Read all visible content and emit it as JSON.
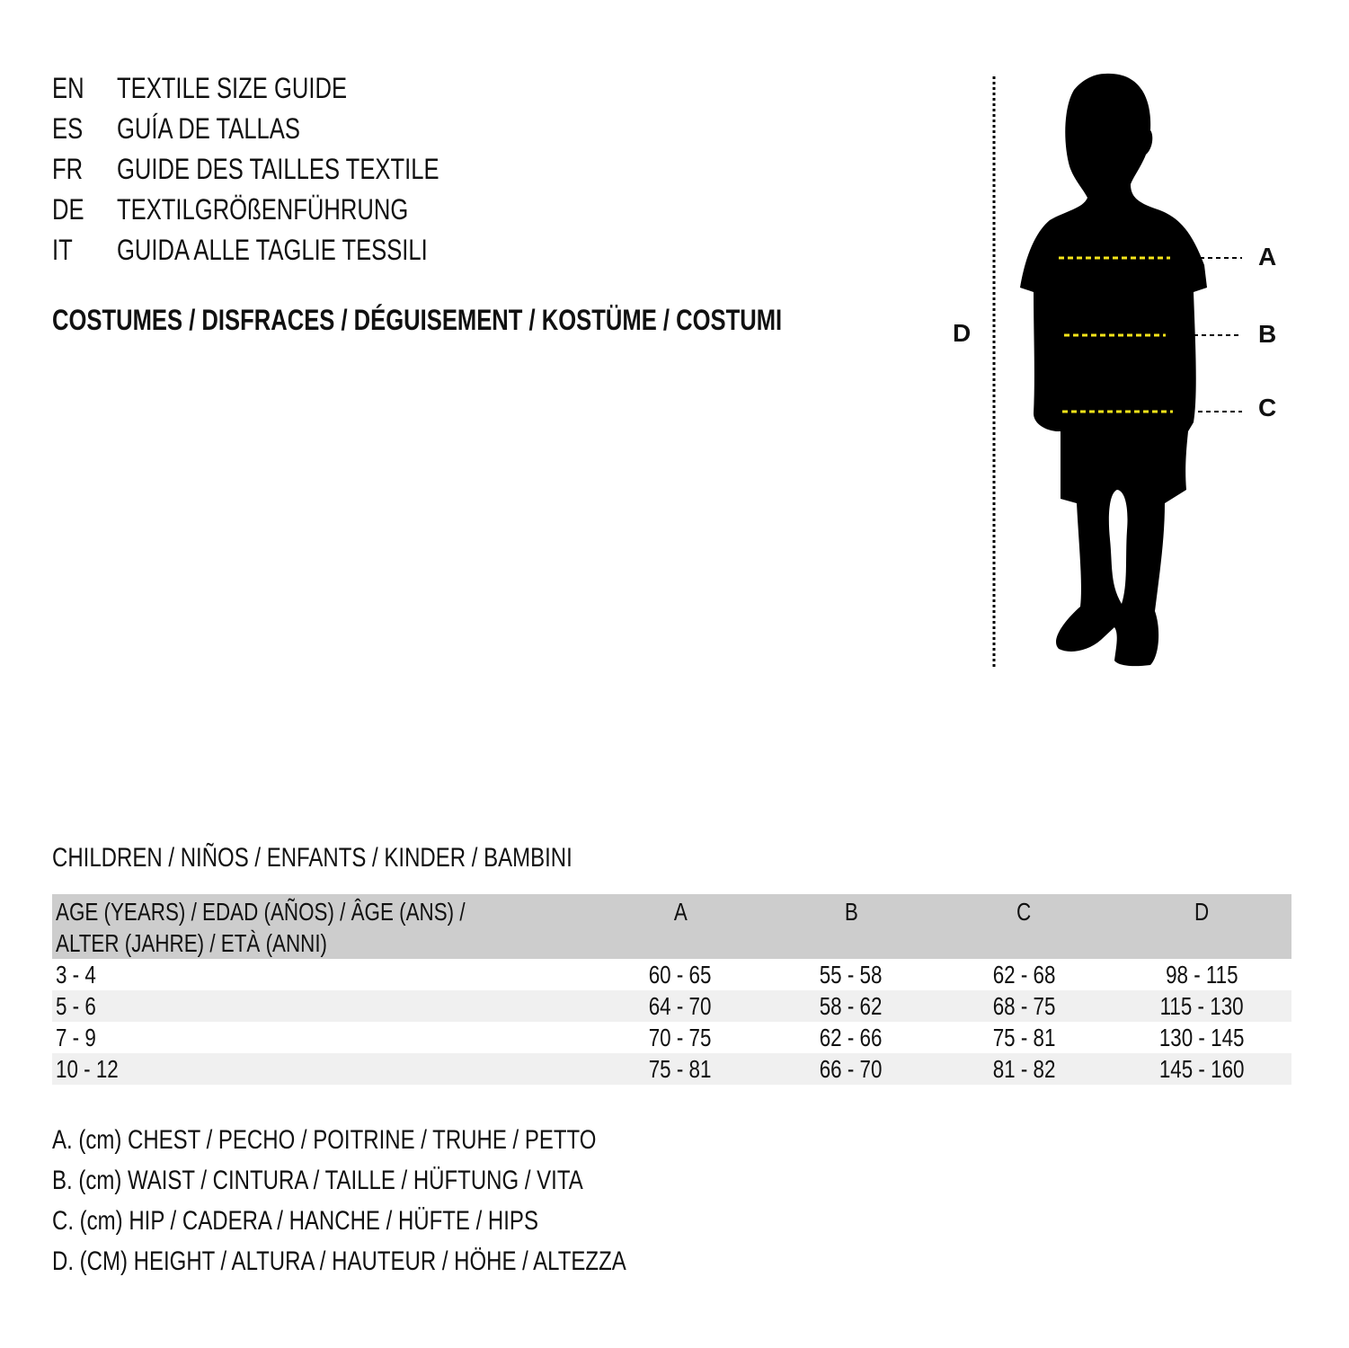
{
  "header": {
    "languages": [
      {
        "code": "EN",
        "title": "TEXTILE SIZE GUIDE"
      },
      {
        "code": "ES",
        "title": "GUÍA DE TALLAS"
      },
      {
        "code": "FR",
        "title": "GUIDE DES TAILLES TEXTILE"
      },
      {
        "code": "DE",
        "title": "TEXTILGRÖßENFÜHRUNG"
      },
      {
        "code": "IT",
        "title": "GUIDA ALLE TAGLIE TESSILI"
      }
    ],
    "category": "COSTUMES / DISFRACES / DÉGUISEMENT / KOSTÜME / COSTUMI"
  },
  "figure": {
    "labels": {
      "a": "A",
      "b": "B",
      "c": "C",
      "d": "D"
    },
    "colors": {
      "silhouette": "#000000",
      "measure_line": "#f5e31a"
    }
  },
  "table": {
    "caption": "CHILDREN / NIÑOS / ENFANTS / KINDER / BAMBINI",
    "header_line1": "AGE (YEARS) / EDAD (AÑOS) / ÂGE (ANS) /",
    "header_line2": "ALTER (JAHRE) / ETÀ (ANNI)",
    "columns": [
      "A",
      "B",
      "C",
      "D"
    ],
    "rows": [
      [
        "3 - 4",
        "60 - 65",
        "55 - 58",
        "62 - 68",
        "98 - 115"
      ],
      [
        "5 - 6",
        "64 - 70",
        "58 - 62",
        "68 - 75",
        "115 - 130"
      ],
      [
        "7 - 9",
        "70 - 75",
        "62 - 66",
        "75 - 81",
        "130 - 145"
      ],
      [
        "10 - 12",
        "75 - 81",
        "66 - 70",
        "81 - 82",
        "145 - 160"
      ]
    ]
  },
  "legend": [
    "A. (cm) CHEST / PECHO / POITRINE / TRUHE / PETTO",
    "B. (cm) WAIST / CINTURA / TAILLE / HÜFTUNG / VITA",
    "C. (cm) HIP / CADERA / HANCHE / HÜFTE / HIPS",
    "D. (CM) HEIGHT / ALTURA / HAUTEUR / HÖHE / ALTEZZA"
  ]
}
